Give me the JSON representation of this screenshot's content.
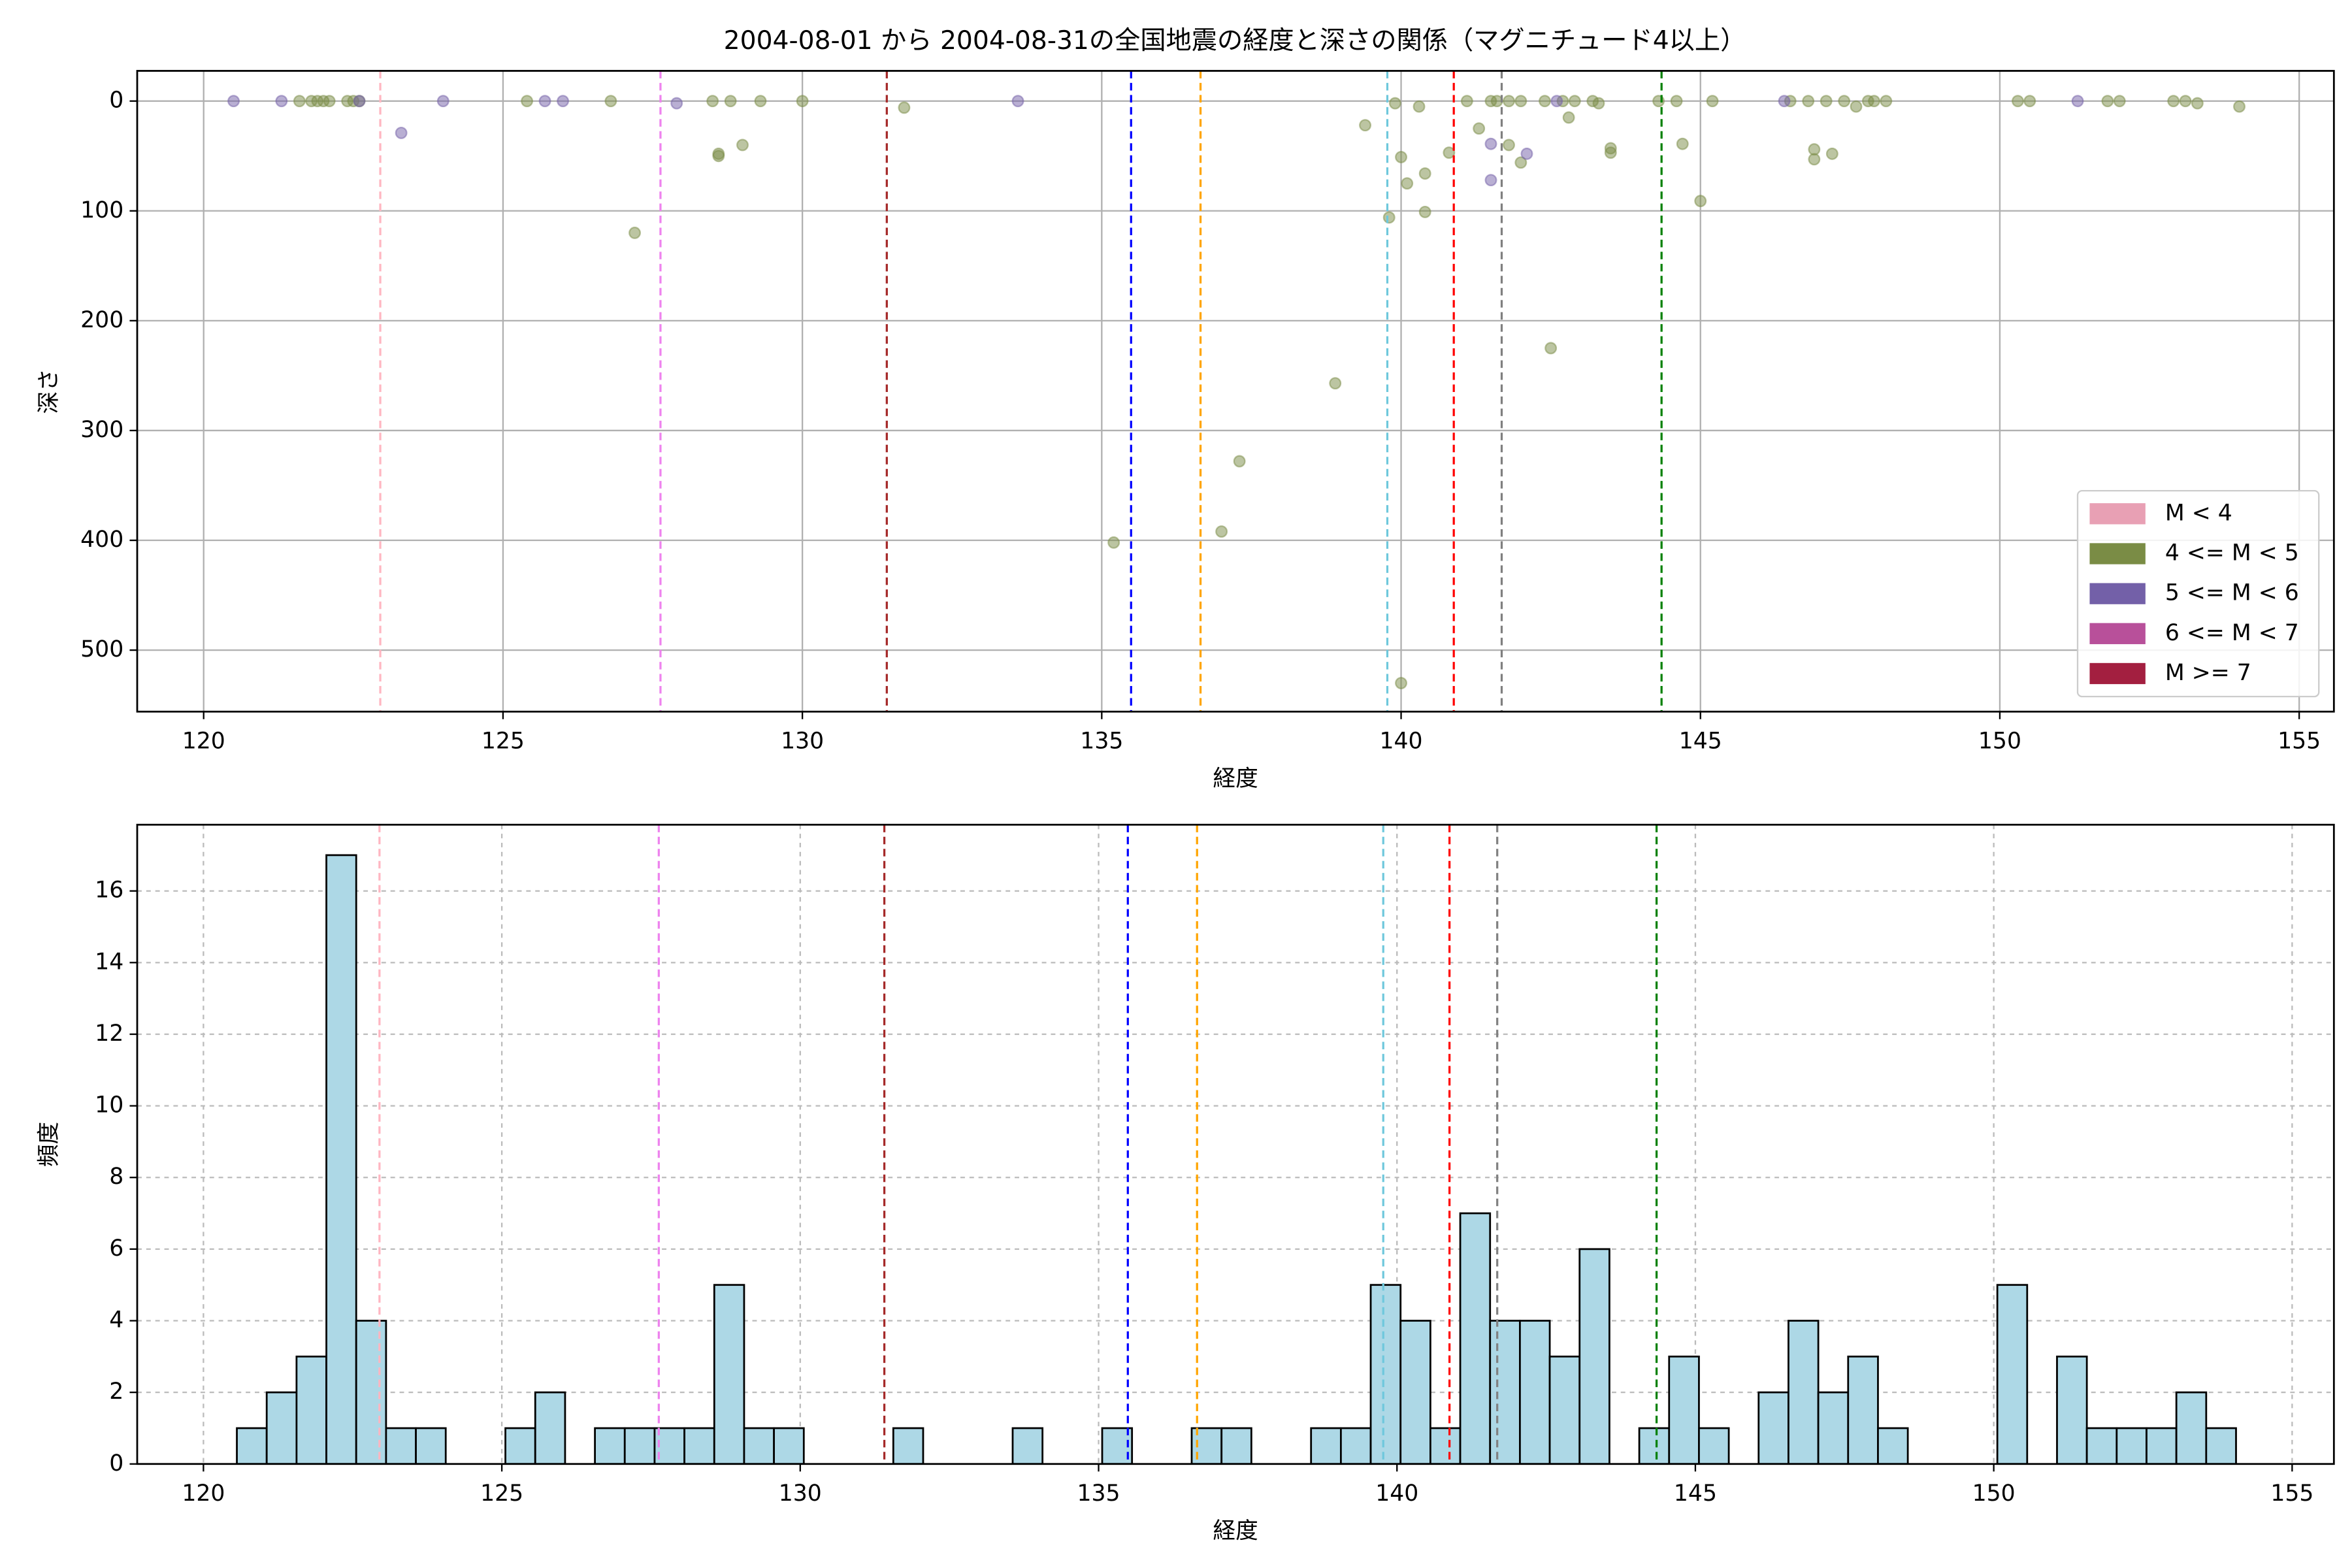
{
  "chart_data": [
    {
      "type": "scatter",
      "title": "2004-08-01 から 2004-08-31の全国地震の経度と深さの関係（マグニチュード4以上）",
      "xlabel": "経度",
      "ylabel": "深さ",
      "xlim": [
        118.89,
        155.58
      ],
      "xticks": [
        120,
        125,
        130,
        135,
        140,
        145,
        150,
        155
      ],
      "ylim": [
        556,
        -27.5
      ],
      "yticks": [
        0,
        100,
        200,
        300,
        400,
        500
      ],
      "grid": "solid",
      "alpha": 0.5,
      "legend": "lower right",
      "series": [
        {
          "name": "M < 4",
          "color": "#e8a0b4",
          "x": [],
          "values": []
        },
        {
          "name": "4 <= M < 5",
          "color": "#7a8c45",
          "x": [
            121.6,
            121.8,
            121.9,
            122.0,
            122.1,
            122.4,
            122.5,
            122.6,
            125.4,
            126.8,
            127.2,
            128.5,
            128.6,
            128.6,
            128.8,
            129.0,
            129.3,
            130.0,
            131.7,
            135.2,
            137.0,
            137.3,
            138.9,
            139.4,
            139.8,
            139.9,
            140.0,
            140.0,
            140.1,
            140.3,
            140.4,
            140.4,
            140.8,
            141.1,
            141.3,
            141.5,
            141.6,
            141.8,
            141.8,
            142.0,
            142.0,
            142.4,
            142.5,
            142.7,
            142.8,
            142.9,
            143.2,
            143.3,
            143.5,
            143.5,
            144.3,
            144.6,
            144.7,
            145.0,
            145.2,
            146.5,
            146.8,
            146.9,
            146.9,
            147.1,
            147.2,
            147.4,
            147.6,
            147.8,
            147.9,
            148.1,
            150.3,
            150.5,
            151.8,
            152.0,
            152.9,
            153.1,
            153.3,
            154.0
          ],
          "values": [
            0,
            0,
            0,
            0,
            0,
            0,
            0,
            0,
            0,
            0,
            120,
            0,
            48,
            50,
            0,
            40,
            0,
            0,
            6,
            402,
            392,
            328,
            257,
            22,
            106,
            2,
            51,
            530,
            75,
            5,
            66,
            101,
            47,
            0,
            25,
            0,
            0,
            0,
            40,
            0,
            56,
            0,
            225,
            0,
            15,
            0,
            0,
            2,
            43,
            47,
            0,
            0,
            39,
            91,
            0,
            0,
            0,
            44,
            53,
            0,
            48,
            0,
            5,
            0,
            0,
            0,
            0,
            0,
            0,
            0,
            0,
            0,
            2,
            5
          ]
        },
        {
          "name": "5 <= M < 6",
          "color": "#7360a8",
          "x": [
            120.5,
            121.3,
            122.6,
            123.3,
            124.0,
            125.7,
            126.0,
            127.9,
            133.6,
            141.5,
            141.5,
            142.1,
            142.6,
            146.4,
            151.3
          ],
          "values": [
            0,
            0,
            0,
            29,
            0,
            0,
            0,
            2,
            0,
            39,
            72,
            48,
            0,
            0,
            0
          ]
        },
        {
          "name": "6 <= M < 7",
          "color": "#b8509a",
          "x": [],
          "values": []
        },
        {
          "name": "M >= 7",
          "color": "#a31f40",
          "x": [],
          "values": []
        }
      ],
      "vlines": [
        {
          "x": 122.95,
          "color": "#ffb6c1"
        },
        {
          "x": 127.63,
          "color": "#ee82ee"
        },
        {
          "x": 131.41,
          "color": "#a52a2a"
        },
        {
          "x": 135.49,
          "color": "#0000ff"
        },
        {
          "x": 136.65,
          "color": "#ffa500"
        },
        {
          "x": 139.77,
          "color": "#6fc8dc"
        },
        {
          "x": 140.88,
          "color": "#ff0000"
        },
        {
          "x": 141.68,
          "color": "#808080"
        },
        {
          "x": 144.35,
          "color": "#008000"
        }
      ]
    },
    {
      "type": "histogram",
      "xlabel": "経度",
      "ylabel": "頻度",
      "xlim": [
        118.89,
        155.7
      ],
      "xticks": [
        120,
        125,
        130,
        135,
        140,
        145,
        150,
        155
      ],
      "ylim": [
        0,
        17.85
      ],
      "yticks": [
        0,
        2,
        4,
        6,
        8,
        10,
        12,
        14,
        16
      ],
      "grid": "dashed",
      "color": "#add8e6",
      "edgecolor": "#000000",
      "bins": [
        120.56,
        121.06,
        121.56,
        122.06,
        122.56,
        123.06,
        123.56,
        124.06,
        124.56,
        125.06,
        125.56,
        126.06,
        126.56,
        127.06,
        127.56,
        128.06,
        128.56,
        129.06,
        129.56,
        130.06,
        130.56,
        131.06,
        131.56,
        132.06,
        132.56,
        133.06,
        133.56,
        134.06,
        134.56,
        135.06,
        135.56,
        136.06,
        136.56,
        137.06,
        137.56,
        138.06,
        138.56,
        139.06,
        139.56,
        140.06,
        140.56,
        141.06,
        141.56,
        142.06,
        142.56,
        143.06,
        143.56,
        144.06,
        144.56,
        145.06,
        145.56,
        146.06,
        146.56,
        147.06,
        147.56,
        148.06,
        148.56,
        149.06,
        149.56,
        150.06,
        150.56,
        151.06,
        151.56,
        152.06,
        152.56,
        153.06,
        153.56,
        154.06
      ],
      "values": [
        1,
        2,
        3,
        17,
        4,
        1,
        1,
        0,
        0,
        1,
        2,
        0,
        1,
        1,
        1,
        1,
        5,
        1,
        1,
        0,
        0,
        0,
        1,
        0,
        0,
        0,
        1,
        0,
        0,
        1,
        0,
        0,
        1,
        1,
        0,
        0,
        1,
        1,
        5,
        4,
        1,
        7,
        4,
        4,
        3,
        6,
        0,
        1,
        3,
        1,
        0,
        2,
        4,
        2,
        3,
        1,
        0,
        0,
        0,
        5,
        0,
        3,
        1,
        1,
        1,
        2,
        1
      ],
      "vlines": [
        {
          "x": 122.95,
          "color": "#ffb6c1"
        },
        {
          "x": 127.63,
          "color": "#ee82ee"
        },
        {
          "x": 131.41,
          "color": "#a52a2a"
        },
        {
          "x": 135.49,
          "color": "#0000ff"
        },
        {
          "x": 136.65,
          "color": "#ffa500"
        },
        {
          "x": 139.77,
          "color": "#6fc8dc"
        },
        {
          "x": 140.88,
          "color": "#ff0000"
        },
        {
          "x": 141.68,
          "color": "#808080"
        },
        {
          "x": 144.35,
          "color": "#008000"
        }
      ]
    }
  ]
}
